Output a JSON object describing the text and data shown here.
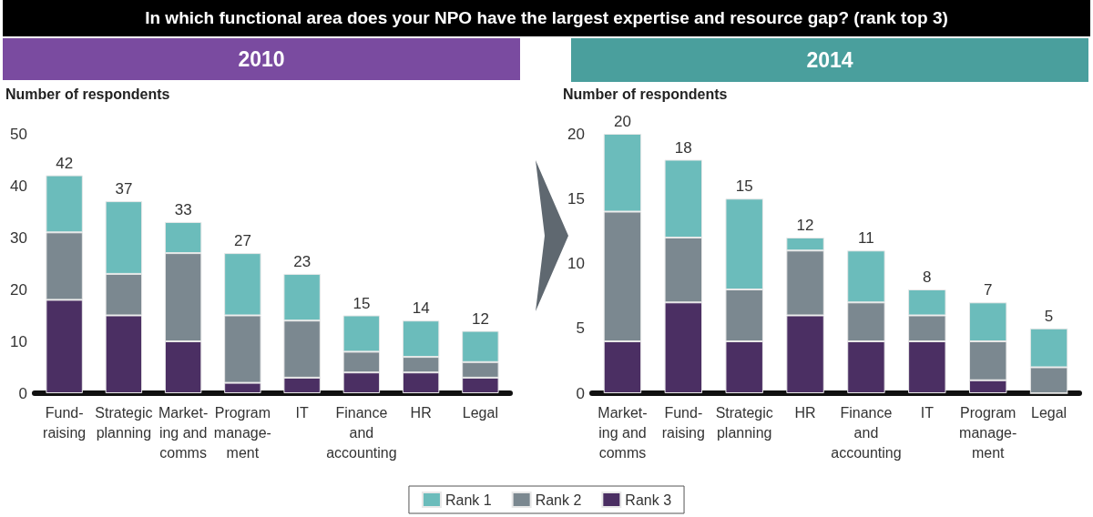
{
  "chart_data": [
    {
      "type": "bar",
      "title": "2010",
      "ylabel": "Number of respondents",
      "annotations": [
        "In which functional area does your NPO have the largest expertise and resource gap? (rank top 3)"
      ],
      "categories": [
        "Fund-\nraising",
        "Strategic\nplanning",
        "Market-\ning and\ncomms",
        "Program\nmanage-\nment",
        "IT",
        "Finance\nand\naccounting",
        "HR",
        "Legal"
      ],
      "stacked": true,
      "series": [
        {
          "color": "#4b2f63",
          "values": [
            18,
            15,
            10,
            2,
            3,
            4,
            4,
            3
          ]
        },
        {
          "color": "#7b8890",
          "values": [
            13,
            8,
            17,
            13,
            11,
            4,
            3,
            3
          ]
        },
        {
          "color": "#6bbcbb",
          "values": [
            11,
            14,
            6,
            12,
            9,
            7,
            7,
            6
          ]
        }
      ],
      "totals": [
        "42",
        "37",
        "33",
        "27",
        "23",
        "15",
        "14",
        "12"
      ],
      "ylim": [
        0,
        50
      ],
      "yticks": [
        0,
        10,
        20,
        30,
        40,
        50
      ],
      "legend": false
    },
    {
      "type": "bar",
      "title": "2014",
      "ylabel": "Number of respondents",
      "categories": [
        "Market-\ning and\ncomms",
        "Fund-\nraising",
        "Strategic\nplanning",
        "HR",
        "Finance\nand\naccounting",
        "IT",
        "Program\nmanage-\nment",
        "Legal"
      ],
      "stacked": true,
      "series": [
        {
          "name": "Rank 3",
          "color": "#4b2f63",
          "values": [
            4,
            7,
            4,
            6,
            4,
            4,
            1,
            0
          ]
        },
        {
          "name": "Rank 2",
          "color": "#7b8890",
          "values": [
            10,
            5,
            4,
            5,
            3,
            2,
            3,
            2
          ]
        },
        {
          "name": "Rank 1",
          "color": "#6bbcbb",
          "values": [
            6,
            6,
            7,
            1,
            4,
            2,
            3,
            3
          ]
        }
      ],
      "totals": [
        "20",
        "18",
        "15",
        "12",
        "11",
        "8",
        "7",
        "5"
      ],
      "ylim": [
        0,
        20
      ],
      "yticks": [
        0,
        5,
        10,
        15,
        20
      ],
      "legend": "bottom"
    }
  ]
}
